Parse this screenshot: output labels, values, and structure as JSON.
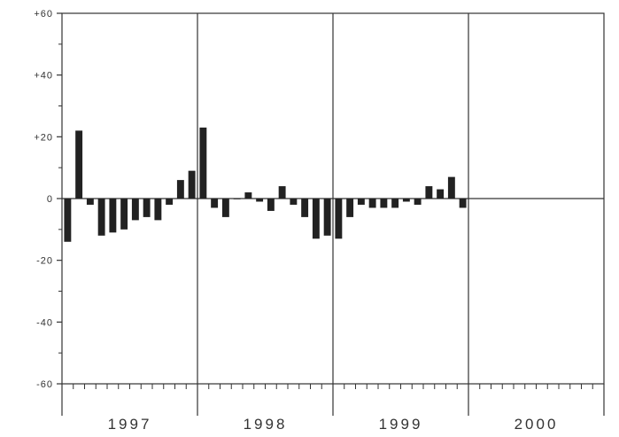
{
  "chart_data": {
    "type": "bar",
    "title": "",
    "xlabel": "",
    "ylabel": "",
    "ylim": [
      -60,
      60
    ],
    "y_ticks": [
      {
        "value": 60,
        "label": "+60"
      },
      {
        "value": 40,
        "label": "+40"
      },
      {
        "value": 20,
        "label": "+20"
      },
      {
        "value": 0,
        "label": "0"
      },
      {
        "value": -20,
        "label": "-20"
      },
      {
        "value": -40,
        "label": "-40"
      },
      {
        "value": -60,
        "label": "-60"
      }
    ],
    "years": [
      "1997",
      "1998",
      "1999",
      "2000"
    ],
    "months_per_year": 12,
    "grid": false,
    "series": [
      {
        "values": [
          -14,
          22,
          -2,
          -12,
          -11,
          -10,
          -7,
          -6,
          -7,
          -2,
          6,
          9,
          23,
          -3,
          -6,
          0,
          2,
          -1,
          -4,
          4,
          -2,
          -6,
          -13,
          -12,
          -13,
          -6,
          -2,
          -3,
          -3,
          -3,
          -1,
          -2,
          4,
          3,
          7,
          -3
        ]
      }
    ],
    "colors": {
      "bar": "#222222",
      "axis": "#333333",
      "background": "#ffffff"
    }
  }
}
